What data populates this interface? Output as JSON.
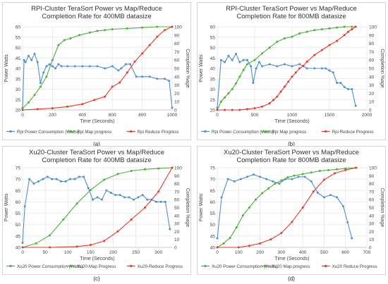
{
  "chart_data": [
    {
      "id": "a",
      "type": "line",
      "title": [
        "RPI-Cluster TeraSort Power vs Map/Reduce",
        "Completion Rate for 400MB datasize"
      ],
      "xlabel": "Time (Seconds)",
      "ylabel": "Power Watts",
      "y2label": "Completion %age",
      "xlim": [
        0,
        1000
      ],
      "xticks": [
        0,
        200,
        400,
        600,
        800,
        1000
      ],
      "ylim": [
        20,
        60
      ],
      "yticks": [
        20,
        25,
        30,
        35,
        40,
        45,
        50,
        55,
        60
      ],
      "y2lim": [
        0,
        100
      ],
      "y2ticks": [
        0,
        10,
        20,
        30,
        40,
        50,
        60,
        70,
        80,
        90,
        100
      ],
      "grid": true,
      "legend_position": "bottom",
      "sublabel": "(a)",
      "series": [
        {
          "name": "Rpi Power Consumption (Watts)",
          "axis": "left",
          "color": "#4f8fce",
          "marker": "dot",
          "x": [
            0,
            10,
            20,
            40,
            60,
            80,
            100,
            120,
            140,
            160,
            180,
            200,
            220,
            240,
            260,
            300,
            350,
            400,
            450,
            500,
            550,
            600,
            640,
            660,
            690,
            720,
            760,
            800,
            850,
            900,
            950,
            980,
            1000
          ],
          "y": [
            21,
            44,
            43,
            46,
            44,
            47,
            43,
            33,
            38,
            41,
            42,
            41,
            40,
            42,
            41,
            41,
            41,
            41,
            41,
            41,
            40,
            41,
            39,
            40,
            42,
            42,
            36,
            36,
            36,
            35,
            35,
            34,
            21
          ]
        },
        {
          "name": "Rpi Map progress",
          "axis": "right",
          "color": "#4caf3a",
          "marker": "dot",
          "x": [
            0,
            40,
            80,
            120,
            160,
            200,
            240,
            280,
            320,
            380,
            450,
            500,
            550,
            600,
            700,
            800,
            900,
            1000
          ],
          "y": [
            2,
            9,
            18,
            28,
            40,
            60,
            78,
            84,
            86,
            90,
            93,
            95,
            96,
            97,
            98,
            99,
            100,
            100
          ]
        },
        {
          "name": "Rpi Reduce Progress",
          "axis": "right",
          "color": "#e23b2a",
          "marker": "dot",
          "x": [
            0,
            100,
            200,
            300,
            400,
            480,
            550,
            600,
            650,
            700,
            750,
            800,
            850,
            900,
            950,
            1000
          ],
          "y": [
            0,
            1,
            2,
            4,
            7,
            12,
            16,
            28,
            33,
            45,
            58,
            68,
            78,
            88,
            96,
            100
          ]
        }
      ]
    },
    {
      "id": "b",
      "type": "line",
      "title": [
        "RPI-Cluster TeraSort Power vs Map/Reduce",
        "Completion Rate for 800MB datasize"
      ],
      "xlabel": "Time (Seconds)",
      "ylabel": "Power Watts",
      "y2label": "Completion %age",
      "xlim": [
        0,
        2000
      ],
      "xticks": [
        0,
        500,
        1000,
        1500,
        2000
      ],
      "ylim": [
        20,
        60
      ],
      "yticks": [
        20,
        25,
        30,
        35,
        40,
        45,
        50,
        55,
        60
      ],
      "y2lim": [
        0,
        100
      ],
      "y2ticks": [
        0,
        10,
        20,
        30,
        40,
        50,
        60,
        70,
        80,
        90,
        100
      ],
      "grid": true,
      "legend_position": "bottom",
      "sublabel": "(b)",
      "series": [
        {
          "name": "Rpi Power Consumption (Watts)",
          "axis": "left",
          "color": "#4f8fce",
          "marker": "dot",
          "x": [
            0,
            50,
            100,
            150,
            200,
            250,
            300,
            350,
            400,
            450,
            480,
            520,
            560,
            600,
            700,
            800,
            900,
            1000,
            1100,
            1200,
            1300,
            1400,
            1450,
            1500,
            1550,
            1600,
            1650,
            1700,
            1750,
            1800,
            1850
          ],
          "y": [
            21,
            44,
            43,
            46,
            44,
            47,
            43,
            44,
            44,
            41,
            33,
            40,
            43,
            41,
            42,
            41,
            42,
            41,
            42,
            40,
            40,
            40,
            40,
            39,
            38,
            33,
            33,
            31,
            30,
            30,
            22
          ]
        },
        {
          "name": "Rpi Map progress",
          "axis": "right",
          "color": "#4caf3a",
          "marker": "dot",
          "x": [
            0,
            50,
            100,
            150,
            200,
            250,
            300,
            350,
            400,
            500,
            600,
            700,
            800,
            900,
            1000,
            1100,
            1200,
            1300,
            1400,
            1500,
            1600,
            1700,
            1800,
            1850
          ],
          "y": [
            0,
            10,
            15,
            20,
            25,
            32,
            40,
            48,
            55,
            60,
            68,
            75,
            82,
            86,
            88,
            92,
            94,
            96,
            97,
            98,
            99,
            100,
            100,
            100
          ]
        },
        {
          "name": "Rpi Reduce Progress",
          "axis": "right",
          "color": "#e23b2a",
          "marker": "dot",
          "x": [
            0,
            100,
            200,
            300,
            400,
            500,
            600,
            700,
            750,
            800,
            850,
            900,
            950,
            1000,
            1050,
            1100,
            1150,
            1200,
            1300,
            1400,
            1500,
            1600,
            1700,
            1750,
            1800,
            1850
          ],
          "y": [
            0,
            0,
            0,
            0,
            1,
            2,
            4,
            8,
            12,
            16,
            22,
            28,
            34,
            40,
            45,
            50,
            53,
            58,
            66,
            72,
            78,
            83,
            90,
            94,
            97,
            100
          ]
        }
      ]
    },
    {
      "id": "c",
      "type": "line",
      "title": [
        "Xu20-Cluster TeraSort Power vs Map/Reduce",
        "Completion Rate for 400MB datasize"
      ],
      "xlabel": "Time (Seconds)",
      "ylabel": "Power Watts",
      "y2label": "Completion %age",
      "xlim": [
        0,
        330
      ],
      "xticks": [
        0,
        50,
        100,
        150,
        200,
        250,
        300
      ],
      "ylim": [
        40,
        75
      ],
      "yticks": [
        40,
        45,
        50,
        55,
        60,
        65,
        70,
        75
      ],
      "y2lim": [
        0,
        100
      ],
      "y2ticks": [
        0,
        10,
        20,
        30,
        40,
        50,
        60,
        70,
        80,
        90,
        100
      ],
      "grid": true,
      "legend_position": "bottom",
      "sublabel": "(c)",
      "series": [
        {
          "name": "Xu20 Power Consumption (Watts)",
          "axis": "left",
          "color": "#4f8fce",
          "marker": "dot",
          "x": [
            0,
            5,
            15,
            25,
            35,
            45,
            55,
            65,
            75,
            85,
            95,
            105,
            115,
            125,
            135,
            145,
            155,
            165,
            175,
            185,
            195,
            205,
            215,
            225,
            235,
            245,
            255,
            265,
            275,
            285,
            295,
            305,
            315,
            325
          ],
          "y": [
            42,
            58,
            70,
            68,
            69,
            70,
            71,
            70,
            70,
            69,
            69,
            70,
            70,
            71,
            71,
            66,
            61,
            62,
            61,
            65,
            64,
            63,
            63,
            62,
            62,
            61,
            62,
            63,
            61,
            61,
            60,
            60,
            60,
            48
          ]
        },
        {
          "name": "Xu20-Map Progress",
          "axis": "right",
          "color": "#4caf3a",
          "marker": "dot",
          "x": [
            0,
            30,
            60,
            90,
            120,
            150,
            180,
            210,
            240,
            270,
            300,
            330
          ],
          "y": [
            0,
            5,
            15,
            35,
            55,
            72,
            85,
            92,
            96,
            98,
            99,
            100
          ]
        },
        {
          "name": "Xu20-Reduce Progress",
          "axis": "right",
          "color": "#e23b2a",
          "marker": "dot",
          "x": [
            0,
            60,
            120,
            150,
            180,
            210,
            240,
            270,
            300,
            330
          ],
          "y": [
            0,
            0,
            1,
            3,
            8,
            20,
            35,
            50,
            70,
            100
          ]
        }
      ]
    },
    {
      "id": "d",
      "type": "line",
      "title": [
        "Xu20-Cluster TeraSort Power vs Map/Reduce",
        "Completion Rate for 800MB datasize"
      ],
      "xlabel": "Time (Seconds)",
      "ylabel": "Power Watts",
      "y2label": "Completion %age",
      "xlim": [
        0,
        700
      ],
      "xticks": [
        0,
        100,
        200,
        300,
        400,
        500,
        600,
        700
      ],
      "ylim": [
        40,
        75
      ],
      "yticks": [
        40,
        45,
        50,
        55,
        60,
        65,
        70,
        75
      ],
      "y2lim": [
        0,
        100
      ],
      "y2ticks": [
        0,
        10,
        20,
        30,
        40,
        50,
        60,
        70,
        80,
        90,
        100
      ],
      "grid": true,
      "legend_position": "bottom",
      "sublabel": "(d)",
      "series": [
        {
          "name": "Xu20 Power Consumption (Watts)",
          "axis": "left",
          "color": "#4f8fce",
          "marker": "dot",
          "x": [
            0,
            20,
            50,
            80,
            110,
            140,
            170,
            200,
            230,
            260,
            290,
            320,
            350,
            380,
            410,
            440,
            470,
            500,
            530,
            560,
            590,
            610,
            630
          ],
          "y": [
            44,
            62,
            70,
            69,
            70,
            71,
            72,
            71,
            70,
            69,
            68,
            70,
            70,
            71,
            71,
            69,
            64,
            62,
            63,
            62,
            58,
            51,
            44
          ]
        },
        {
          "name": "Xu20 Map progress",
          "axis": "right",
          "color": "#4caf3a",
          "marker": "dot",
          "x": [
            0,
            30,
            60,
            90,
            120,
            150,
            180,
            210,
            240,
            270,
            300,
            330,
            360,
            400,
            440,
            480,
            520,
            560,
            600,
            650
          ],
          "y": [
            0,
            5,
            12,
            25,
            40,
            50,
            60,
            68,
            74,
            80,
            84,
            88,
            90,
            92,
            94,
            96,
            97,
            98,
            99,
            100
          ]
        },
        {
          "name": "Xu20 Reduce Progress",
          "axis": "right",
          "color": "#e23b2a",
          "marker": "dot",
          "x": [
            0,
            100,
            150,
            200,
            250,
            300,
            350,
            400,
            450,
            500,
            550,
            600,
            650
          ],
          "y": [
            0,
            0,
            2,
            5,
            10,
            18,
            32,
            50,
            70,
            85,
            93,
            97,
            100
          ]
        }
      ]
    }
  ]
}
